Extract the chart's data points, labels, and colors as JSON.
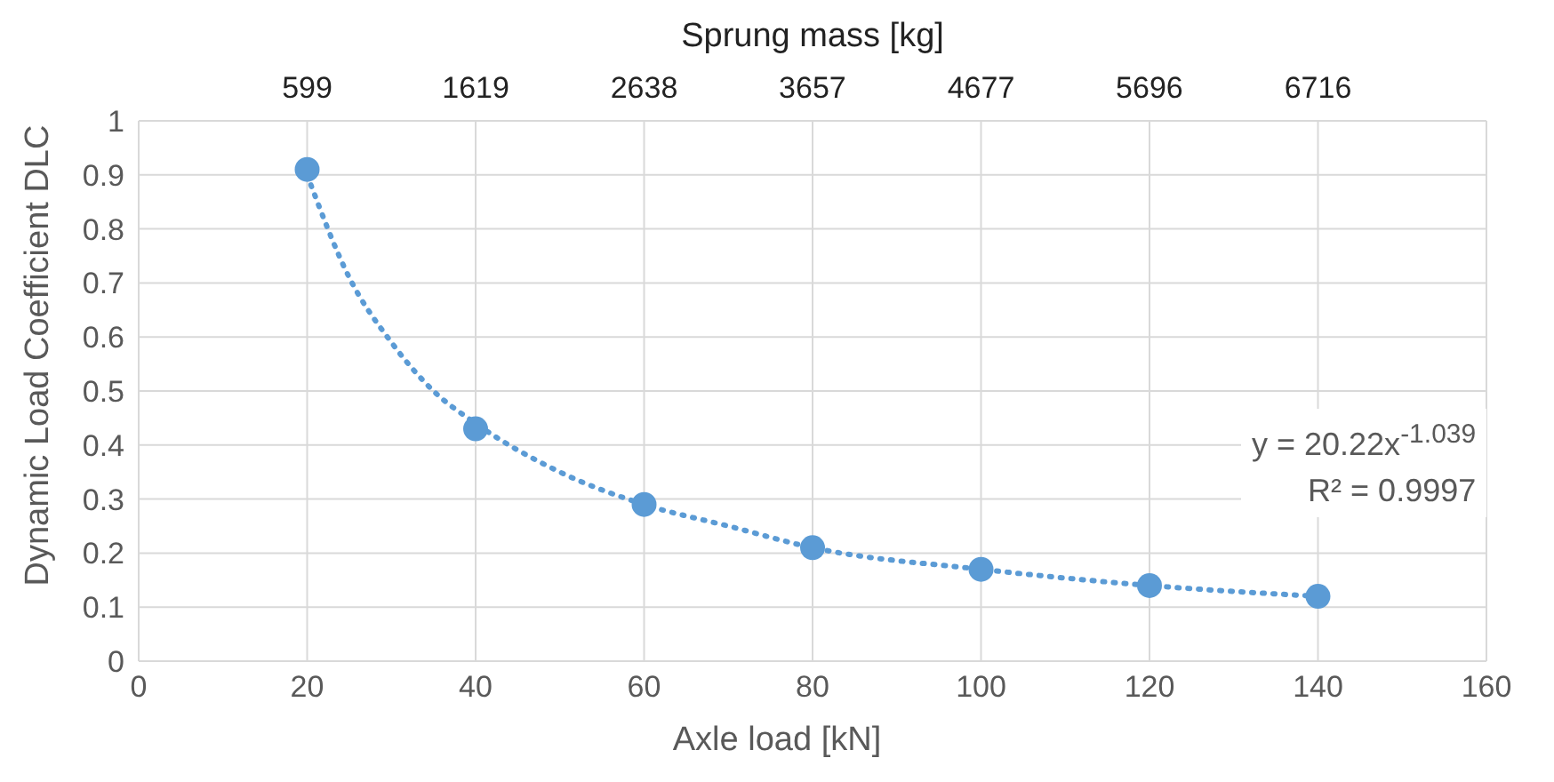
{
  "chart_data": {
    "type": "scatter",
    "xlabel": "Axle load [kN]",
    "ylabel": "Dynamic Load Coefficient DLC",
    "x2label": "Sprung mass [kg]",
    "series": [
      {
        "color": "#5b9bd5",
        "x": [
          20,
          40,
          60,
          80,
          100,
          120,
          140
        ],
        "values": [
          0.91,
          0.43,
          0.29,
          0.21,
          0.17,
          0.14,
          0.12
        ]
      },
      {
        "type": "line",
        "color": "#5b9bd5",
        "line_style": "dotted",
        "marker": "none",
        "x": [
          20,
          25,
          30,
          35,
          40,
          50,
          60,
          70,
          80,
          100,
          120,
          140
        ],
        "values": [
          0.9,
          0.71,
          0.59,
          0.5,
          0.44,
          0.35,
          0.29,
          0.25,
          0.21,
          0.17,
          0.14,
          0.12
        ]
      }
    ],
    "xlim": [
      0,
      160
    ],
    "xticks": [
      0,
      20,
      40,
      60,
      80,
      100,
      120,
      140,
      160
    ],
    "x2lim": [
      -420.5,
      7735.5
    ],
    "x2ticks": [
      599,
      1619,
      2638,
      3657,
      4677,
      5696,
      6716
    ],
    "ylim": [
      0,
      1
    ],
    "yticks": [
      0,
      0.1,
      0.2,
      0.3,
      0.4,
      0.5,
      0.6,
      0.7,
      0.8,
      0.9,
      1
    ],
    "grid": true,
    "marker": "circle",
    "annotations": [
      "y = 20.22x$^{-1.039}$",
      "R² = 0.9997"
    ]
  }
}
